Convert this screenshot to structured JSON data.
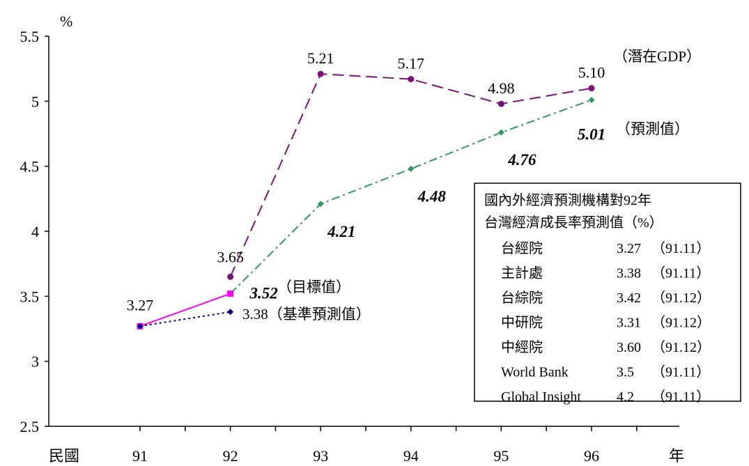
{
  "chart_data": {
    "type": "line",
    "y_unit": "%",
    "x_prefix": "民國",
    "x_suffix": "年",
    "categories": [
      "91",
      "92",
      "93",
      "94",
      "95",
      "96"
    ],
    "yticks": [
      "2.5",
      "3",
      "3.5",
      "4",
      "4.5",
      "5",
      "5.5"
    ],
    "ylim": [
      2.5,
      5.5
    ],
    "grid": false,
    "series": [
      {
        "name": "潛在GDP",
        "label": "（潛在GDP）",
        "color": "#7B0F7B",
        "style": "dashed",
        "marker": "circle",
        "x": [
          "92",
          "93",
          "94",
          "95",
          "96"
        ],
        "values": [
          3.65,
          5.21,
          5.17,
          4.98,
          5.1
        ],
        "labels": [
          "3.65",
          "5.21",
          "5.17",
          "4.98",
          "5.10"
        ]
      },
      {
        "name": "預測值",
        "label": "（預測值）",
        "color": "#2E9A5E",
        "style": "dashdot",
        "marker": "diamond",
        "x": [
          "92",
          "93",
          "94",
          "95",
          "96"
        ],
        "values": [
          3.52,
          4.21,
          4.48,
          4.76,
          5.01
        ],
        "labels": [
          "",
          "4.21",
          "4.48",
          "4.76",
          "5.01"
        ]
      },
      {
        "name": "目標值",
        "label": "（目標值）",
        "color": "#FF00FF",
        "style": "solid",
        "marker": "square",
        "x": [
          "91",
          "92"
        ],
        "values": [
          3.27,
          3.52
        ],
        "labels": [
          "3.27",
          "3.52"
        ]
      },
      {
        "name": "基準預測值",
        "label": "3.38（基準預測值）",
        "color": "#000080",
        "style": "dotted",
        "marker": "diamond",
        "x": [
          "91",
          "92"
        ],
        "values": [
          3.27,
          3.38
        ],
        "labels": [
          "",
          ""
        ]
      }
    ],
    "table": {
      "title_line1": "國內外經濟預測機構對92年",
      "title_line2": "台灣經濟成長率預測值（%）",
      "rows": [
        {
          "org": "台經院",
          "value": "3.27",
          "date": "（91.11）"
        },
        {
          "org": "主計處",
          "value": "3.38",
          "date": "（91.11）"
        },
        {
          "org": "台綜院",
          "value": "3.42",
          "date": "（91.12）"
        },
        {
          "org": "中研院",
          "value": "3.31",
          "date": "（91.12）"
        },
        {
          "org": "中經院",
          "value": "3.60",
          "date": "（91.12）"
        },
        {
          "org": "World Bank",
          "value": "3.5",
          "date": "（91.11）"
        },
        {
          "org": "Global Insight",
          "value": "4.2",
          "date": "（91.11）"
        }
      ]
    }
  }
}
